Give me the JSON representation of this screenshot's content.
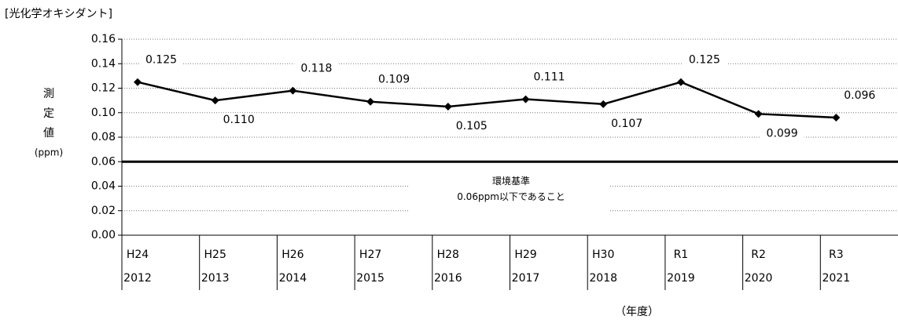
{
  "chart_data": {
    "type": "line",
    "title": "[光化学オキシダント]",
    "ylabel": [
      "測",
      "定",
      "値",
      "(ppm)"
    ],
    "xlabel": "（年度）",
    "categories": [
      "H24",
      "H25",
      "H26",
      "H27",
      "H28",
      "H29",
      "H30",
      "R1",
      "R2",
      "R3"
    ],
    "years": [
      "2012",
      "2013",
      "2014",
      "2015",
      "2016",
      "2017",
      "2018",
      "2019",
      "2020",
      "2021"
    ],
    "series": [
      {
        "name": "光化学オキシダント",
        "color": "#000000",
        "values": [
          0.125,
          0.11,
          0.118,
          0.109,
          0.105,
          0.111,
          0.107,
          0.125,
          0.099,
          0.096
        ],
        "value_labels": [
          "0.125",
          "0.110",
          "0.118",
          "0.109",
          "0.105",
          "0.111",
          "0.107",
          "0.125",
          "0.099",
          "0.096"
        ]
      }
    ],
    "ylim": [
      0,
      0.16
    ],
    "yticks": [
      {
        "value": 0,
        "label": "0.00"
      },
      0.02,
      0.04,
      0.06,
      0.08,
      {
        "value": 0.1,
        "label": "0.10"
      },
      0.12,
      0.14,
      0.16
    ],
    "grid": true,
    "reference": {
      "value": 0.06,
      "label": [
        "環境基準",
        "0.06ppm以下であること"
      ]
    }
  }
}
